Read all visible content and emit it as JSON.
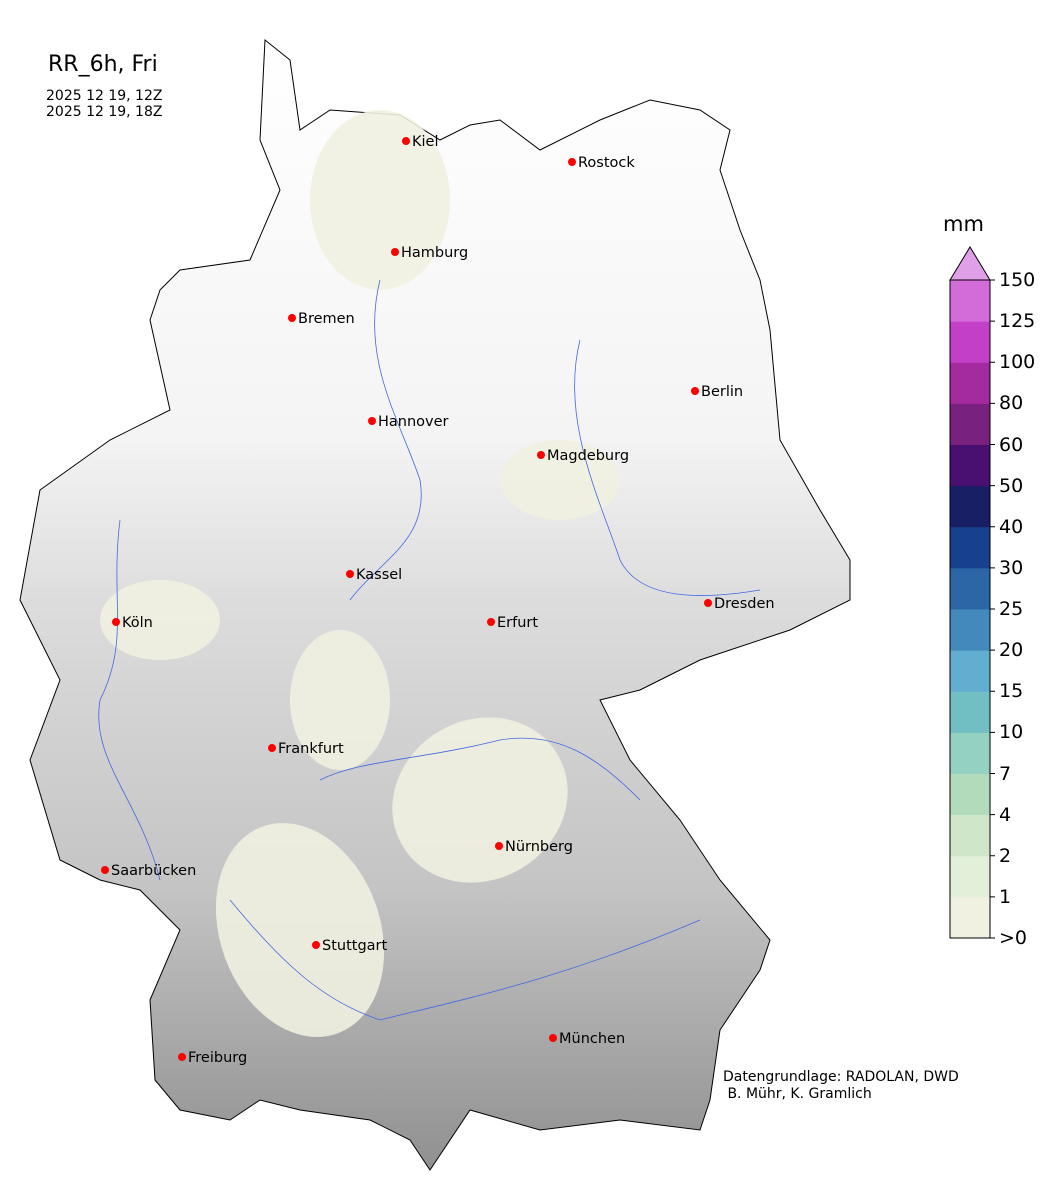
{
  "header": {
    "title": "RR_6h, Fri",
    "period_start": "2025 12 19, 12Z",
    "period_end": "2025 12 19, 18Z"
  },
  "credits": {
    "line1": "Datengrundlage: RADOLAN, DWD",
    "line2": " B. Mühr, K. Gramlich"
  },
  "map": {
    "region": "Germany",
    "city_marker_color": "#ff0000",
    "river_color": "#4169e1",
    "cities": [
      "Kiel",
      "Rostock",
      "Hamburg",
      "Bremen",
      "Berlin",
      "Hannover",
      "Magdeburg",
      "Kassel",
      "Köln",
      "Erfurt",
      "Dresden",
      "Frankfurt",
      "Nürnberg",
      "Saarbücken",
      "Stuttgart",
      "München",
      "Freiburg"
    ]
  },
  "colorbar": {
    "unit": "mm",
    "tick_labels": [
      ">0",
      "1",
      "2",
      "4",
      "7",
      "10",
      "15",
      "20",
      "25",
      "30",
      "40",
      "50",
      "60",
      "80",
      "100",
      "125",
      "150"
    ],
    "colors": [
      "#f1f1e1",
      "#e3f0d9",
      "#cfe7c8",
      "#b2dbbc",
      "#94d1c3",
      "#72bfc3",
      "#62aed1",
      "#4389bc",
      "#2c66a7",
      "#17418e",
      "#191f65",
      "#4a1071",
      "#78217e",
      "#a42a9f",
      "#c43fc7",
      "#d36cd9"
    ],
    "extend_color": "#e0a0e8"
  }
}
